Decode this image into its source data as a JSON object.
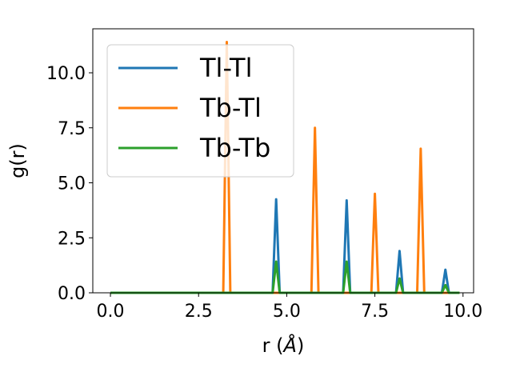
{
  "chart_data": {
    "type": "line",
    "xlabel_prefix": "r (",
    "xlabel_unit": "Å",
    "xlabel_suffix": ")",
    "ylabel": "g(r)",
    "xlim": [
      -0.5,
      10.3
    ],
    "ylim": [
      0,
      12.0
    ],
    "xticks": [
      0.0,
      2.5,
      5.0,
      7.5,
      10.0
    ],
    "xtick_labels": [
      "0.0",
      "2.5",
      "5.0",
      "7.5",
      "10.0"
    ],
    "yticks": [
      0.0,
      2.5,
      5.0,
      7.5,
      10.0
    ],
    "ytick_labels": [
      "0.0",
      "2.5",
      "5.0",
      "7.5",
      "10.0"
    ],
    "grid": false,
    "legend_position": "upper-left",
    "series": [
      {
        "name": "Tl-Tl",
        "color": "#1f77b4",
        "x": [
          0,
          4.6,
          4.7,
          4.8,
          6.6,
          6.7,
          6.8,
          8.1,
          8.2,
          8.3,
          9.4,
          9.5,
          9.6,
          9.9
        ],
        "y": [
          0,
          0,
          4.25,
          0,
          0,
          4.2,
          0,
          0,
          1.9,
          0,
          0,
          1.05,
          0,
          0
        ]
      },
      {
        "name": "Tb-Tl",
        "color": "#ff7f0e",
        "x": [
          0,
          3.2,
          3.3,
          3.4,
          5.7,
          5.8,
          5.9,
          7.4,
          7.5,
          7.6,
          8.7,
          8.8,
          8.9,
          9.9
        ],
        "y": [
          0,
          0,
          11.4,
          0,
          0,
          7.5,
          0,
          0,
          4.5,
          0,
          0,
          6.55,
          0,
          0
        ]
      },
      {
        "name": "Tb-Tb",
        "color": "#2ca02c",
        "x": [
          0,
          4.6,
          4.7,
          4.8,
          6.6,
          6.7,
          6.8,
          8.1,
          8.2,
          8.3,
          9.4,
          9.5,
          9.6,
          9.9
        ],
        "y": [
          0,
          0,
          1.42,
          0,
          0,
          1.42,
          0,
          0,
          0.65,
          0,
          0,
          0.35,
          0,
          0
        ]
      }
    ]
  }
}
